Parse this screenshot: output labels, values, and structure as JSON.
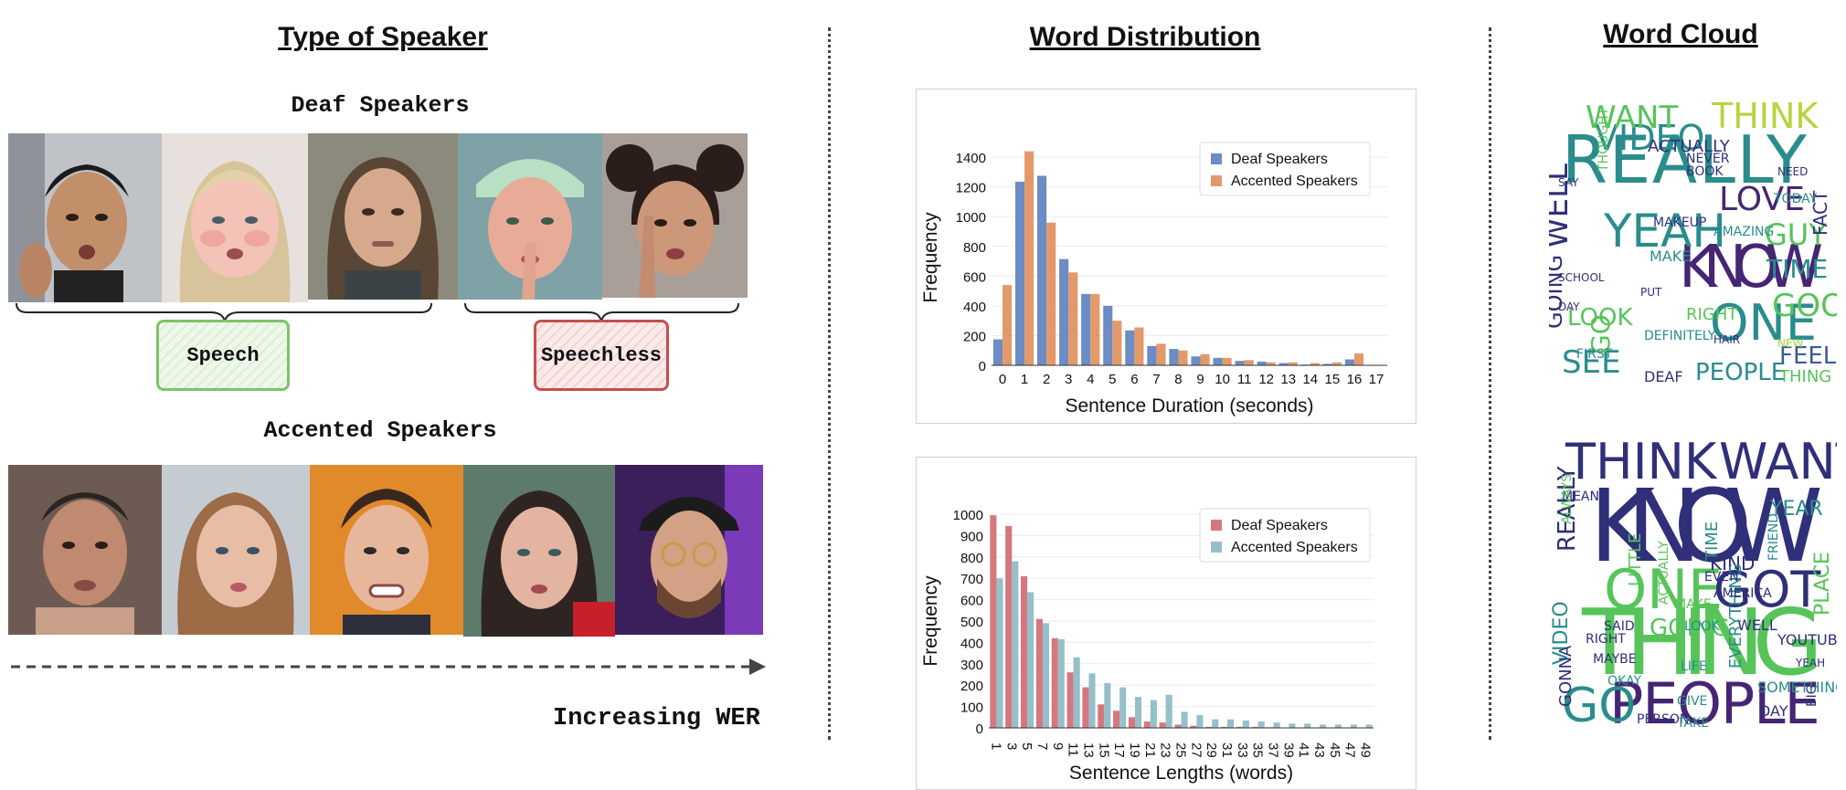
{
  "sections": {
    "speaker": "Type of Speaker",
    "distribution": "Word Distribution",
    "cloud": "Word Cloud"
  },
  "groups": {
    "deaf": "Deaf Speakers",
    "accented": "Accented Speakers"
  },
  "tags": {
    "speech": "Speech",
    "speechless": "Speechless"
  },
  "arrow_label": "Increasing WER",
  "colors": {
    "duration_deaf": "#6b8cc4",
    "duration_accented": "#e39a6b",
    "length_deaf": "#d6777d",
    "length_accented": "#96bfc9"
  },
  "chart_data": [
    {
      "type": "bar",
      "xlabel": "Sentence Duration (seconds)",
      "ylabel": "Frequency",
      "ylim": [
        0,
        1450
      ],
      "yticks": [
        0,
        200,
        400,
        600,
        800,
        1000,
        1200,
        1400
      ],
      "categories": [
        "0",
        "1",
        "2",
        "3",
        "4",
        "5",
        "6",
        "7",
        "8",
        "9",
        "10",
        "11",
        "12",
        "13",
        "14",
        "15",
        "16",
        "17"
      ],
      "series": [
        {
          "name": "Deaf Speakers",
          "values": [
            175,
            1235,
            1275,
            715,
            480,
            400,
            235,
            130,
            110,
            60,
            50,
            30,
            25,
            15,
            5,
            10,
            40,
            0
          ]
        },
        {
          "name": "Accented Speakers",
          "values": [
            540,
            1440,
            960,
            625,
            480,
            300,
            255,
            145,
            100,
            75,
            50,
            35,
            20,
            20,
            15,
            20,
            80,
            0
          ]
        }
      ],
      "legend": "top-right",
      "grid": true
    },
    {
      "type": "bar",
      "xlabel": "Sentence Lengths (words)",
      "ylabel": "Frequency",
      "ylim": [
        0,
        1000
      ],
      "yticks": [
        0,
        100,
        200,
        300,
        400,
        500,
        600,
        700,
        800,
        900,
        1000
      ],
      "categories": [
        "1",
        "3",
        "5",
        "7",
        "9",
        "11",
        "13",
        "15",
        "17",
        "19",
        "21",
        "23",
        "25",
        "27",
        "29",
        "31",
        "33",
        "35",
        "37",
        "39",
        "41",
        "43",
        "45",
        "47",
        "49"
      ],
      "series": [
        {
          "name": "Deaf Speakers",
          "values": [
            995,
            945,
            710,
            510,
            420,
            260,
            190,
            110,
            80,
            50,
            30,
            25,
            15,
            10,
            5,
            5,
            5,
            5,
            3,
            2,
            2,
            2,
            2,
            2,
            2
          ]
        },
        {
          "name": "Accented Speakers",
          "values": [
            700,
            780,
            635,
            490,
            415,
            330,
            255,
            210,
            190,
            145,
            130,
            155,
            75,
            60,
            40,
            40,
            35,
            30,
            25,
            20,
            20,
            15,
            15,
            15,
            15
          ]
        }
      ],
      "legend": "top-right",
      "grid": true
    }
  ],
  "word_clouds": [
    {
      "words": [
        "REALLY",
        "KNOW",
        "YEAH",
        "VIDEO",
        "THINK",
        "WANT",
        "ONE",
        "LOVE",
        "WELL",
        "GUY",
        "TIME",
        "GOOD",
        "LOOK",
        "GOING",
        "PEOPLE",
        "FEEL",
        "SEE",
        "GO",
        "THING",
        "RIGHT",
        "ACTUALLY",
        "MAKE",
        "FIRST",
        "DEAF",
        "SAY",
        "NEVER",
        "FACT",
        "BOOK",
        "NEED",
        "TODAY",
        "THOUGHT",
        "AMAZING",
        "MAKEUP",
        "NEW",
        "HAIR",
        "DEFINITELY",
        "PUT",
        "DAY",
        "SCHOOL"
      ]
    },
    {
      "words": [
        "KNOW",
        "THING",
        "THINK",
        "WANT",
        "ONE",
        "GOT",
        "PEOPLE",
        "GO",
        "REALLY",
        "VIDEO",
        "GONNA",
        "GOING",
        "KIND",
        "YEAR",
        "TIME",
        "LOOK",
        "WELL",
        "LIFE",
        "PLACE",
        "YOUTUBE",
        "SOMETHING",
        "LITTLE",
        "MAKE",
        "RIGHT",
        "OKAY",
        "EVERYTHING",
        "DAY",
        "GIVE",
        "YEAH",
        "MAYBE",
        "SAID",
        "AMERICA",
        "ACTUALLY",
        "FRIEND",
        "BIG",
        "PERSON",
        "TAKE",
        "MEAN",
        "ALWAYS",
        "EVEN"
      ]
    }
  ]
}
